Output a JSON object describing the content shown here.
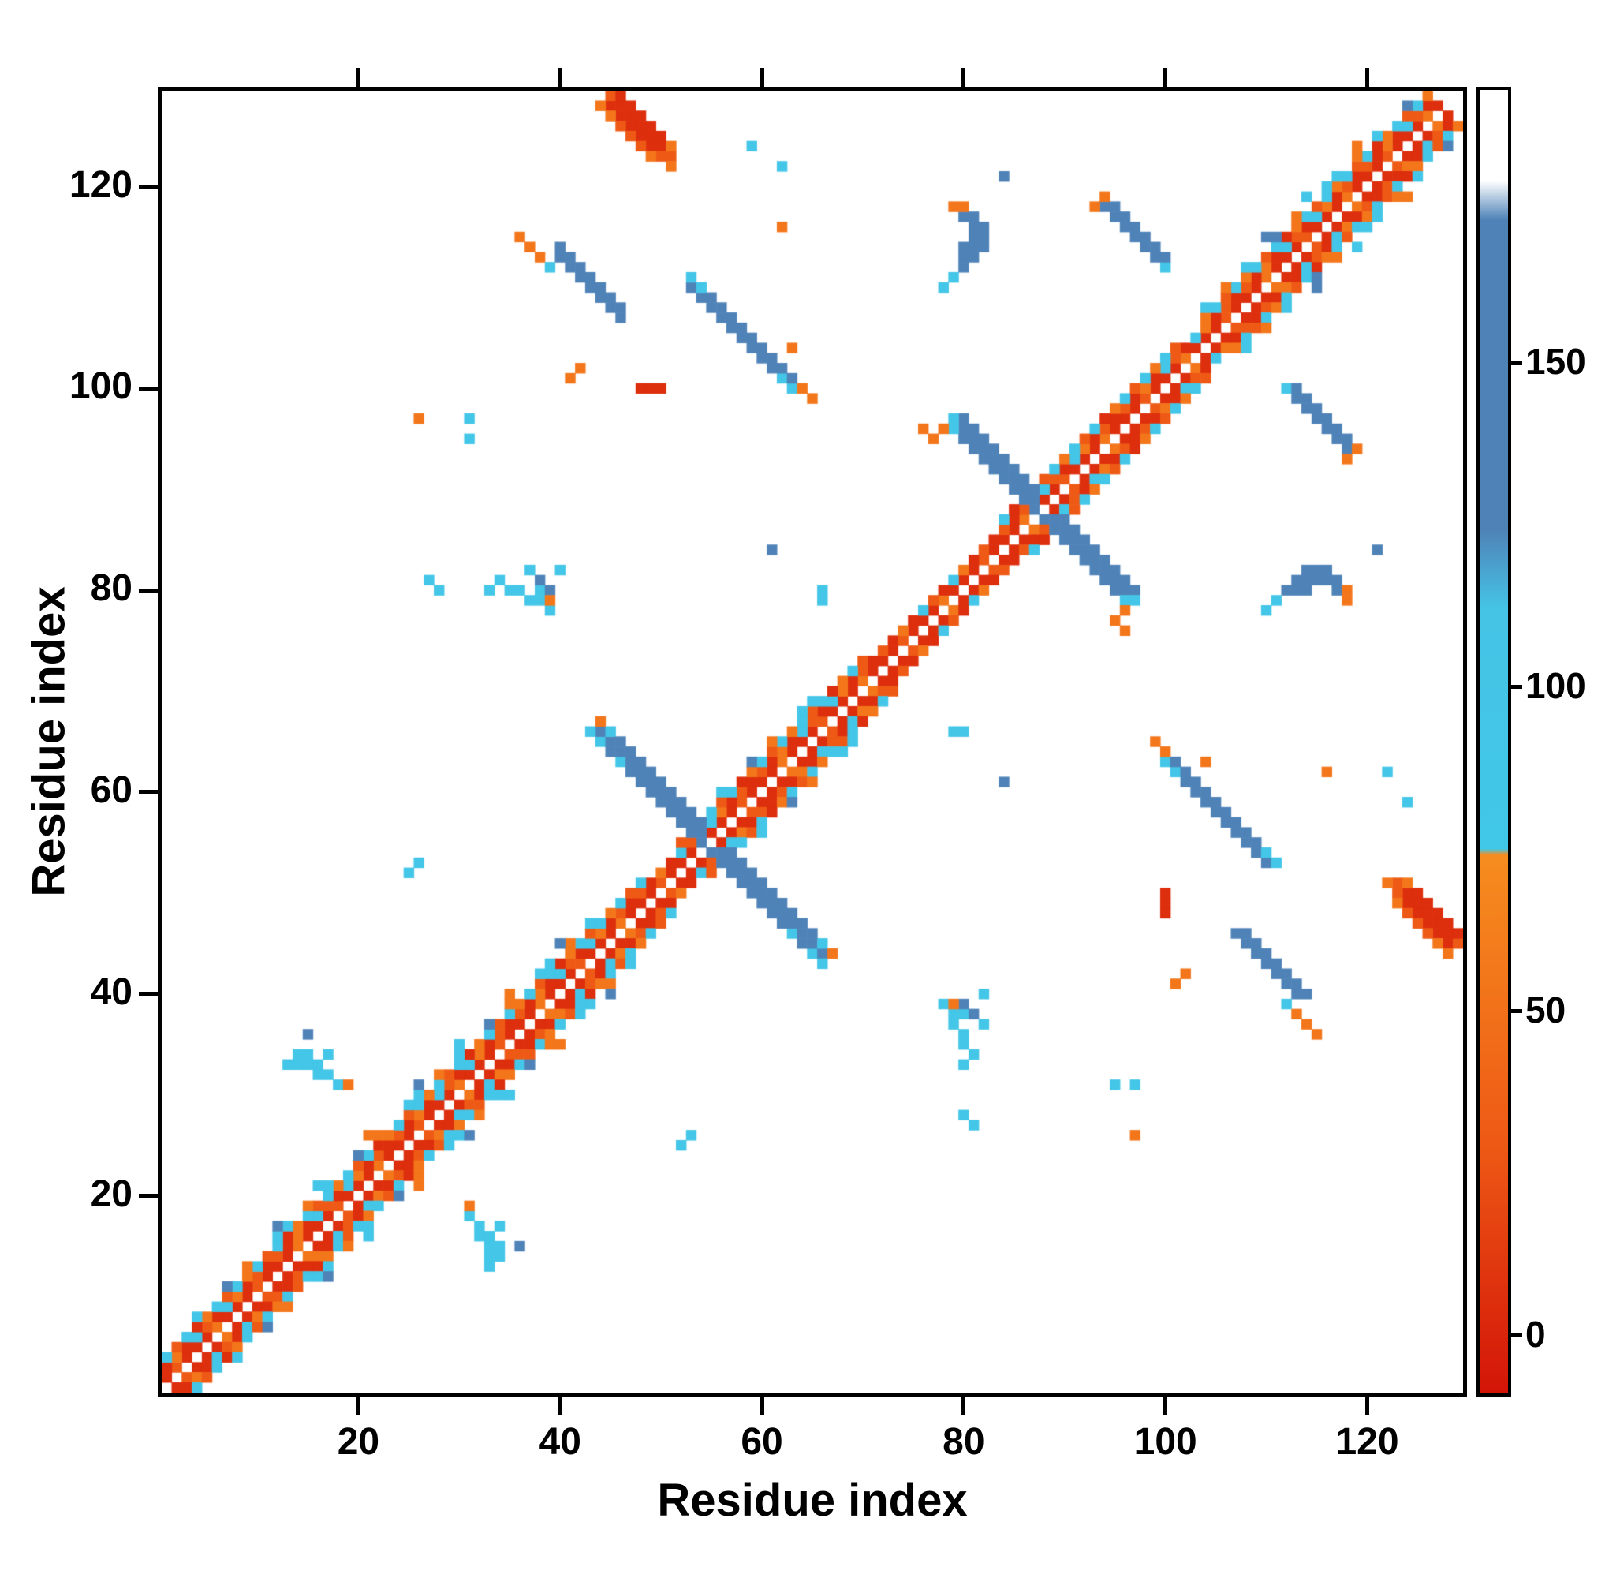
{
  "chart_data": {
    "type": "heatmap",
    "title": "",
    "xlabel": "Residue index",
    "ylabel": "Residue index",
    "n_residues": 129,
    "axis_range": [
      0.5,
      129.5
    ],
    "x_ticks": [
      20,
      40,
      60,
      80,
      100,
      120
    ],
    "y_ticks": [
      20,
      40,
      60,
      80,
      100,
      120
    ],
    "grid": false,
    "background": "#ffffff",
    "axis_color": "#000000",
    "symmetric": true,
    "colorbar": {
      "range": [
        -9,
        192
      ],
      "ticks": [
        0,
        50,
        100,
        150
      ],
      "stops": [
        {
          "v": -9,
          "color": "#d31508"
        },
        {
          "v": 30,
          "color": "#ee5a15"
        },
        {
          "v": 74,
          "color": "#f68c1f"
        },
        {
          "v": 75,
          "color": "#41c7e8"
        },
        {
          "v": 112,
          "color": "#45c4e6"
        },
        {
          "v": 124,
          "color": "#4f83b8"
        },
        {
          "v": 172,
          "color": "#4f83b8"
        },
        {
          "v": 178,
          "color": "#ffffff"
        },
        {
          "v": 192,
          "color": "#ffffff"
        }
      ]
    },
    "features": [
      {
        "name": "near-diagonal-band",
        "type": "band",
        "offsets": [
          {
            "d": 1,
            "ranges": [
              [
                1,
                127
              ]
            ],
            "pattern": [
              5,
              5,
              30,
              5,
              5,
              5,
              55,
              5
            ]
          },
          {
            "d": 2,
            "ranges": [
              [
                1,
                126
              ]
            ],
            "pattern": [
              30,
              5,
              55,
              5,
              90,
              30,
              5,
              90,
              55,
              5,
              30,
              5
            ]
          },
          {
            "d": 3,
            "ranges": [
              [
                1,
                48
              ],
              [
                52,
                70
              ],
              [
                84,
                101
              ],
              [
                104,
                126
              ]
            ],
            "pattern": [
              55,
              90,
              30,
              90,
              5,
              55,
              90,
              30,
              90
            ]
          },
          {
            "d": 4,
            "ranges": [
              [
                4,
                44
              ],
              [
                56,
                66
              ],
              [
                104,
                125
              ]
            ],
            "pattern": [
              90,
              0,
              55,
              0,
              90,
              0,
              0,
              140,
              0,
              55,
              0,
              0,
              90
            ]
          },
          {
            "d": 5,
            "ranges": [
              [
                12,
                40
              ],
              [
                108,
                122
              ]
            ],
            "pattern": [
              0,
              0,
              90,
              0,
              0,
              0,
              0,
              55,
              0,
              0,
              0,
              0,
              140,
              0
            ]
          }
        ]
      },
      {
        "name": "hairpin-55",
        "type": "antidiag",
        "sum": 110,
        "i0": 44,
        "i1": 54,
        "offsets": [
          -1,
          0,
          1
        ],
        "v": 145
      },
      {
        "name": "hairpin-55-tips",
        "type": "cells",
        "cells": [
          [
            44,
            65,
            90
          ],
          [
            45,
            66,
            90
          ],
          [
            44,
            66,
            145
          ],
          [
            43,
            66,
            90
          ],
          [
            44,
            67,
            55
          ],
          [
            46,
            63,
            90
          ],
          [
            45,
            64,
            145
          ]
        ]
      },
      {
        "name": "hairpin-88",
        "type": "antidiag",
        "sum": 176,
        "i0": 80,
        "i1": 87,
        "offsets": [
          -1,
          0,
          1
        ],
        "v": 145
      },
      {
        "name": "hairpin-88-tips",
        "type": "cells",
        "cells": [
          [
            79,
            97,
            90
          ],
          [
            80,
            97,
            145
          ],
          [
            79,
            96,
            90
          ],
          [
            81,
            96,
            145
          ],
          [
            86,
            88,
            30
          ]
        ]
      },
      {
        "name": "streak-56-107",
        "type": "antidiag",
        "sum": 163,
        "i0": 53,
        "i1": 63,
        "offsets": [
          0,
          1
        ],
        "v": 145
      },
      {
        "name": "streak-56-107-ends",
        "type": "cells",
        "cells": [
          [
            53,
            111,
            90
          ],
          [
            54,
            110,
            90
          ],
          [
            62,
            101,
            90
          ],
          [
            63,
            100,
            90
          ],
          [
            64,
            100,
            55
          ],
          [
            65,
            99,
            55
          ],
          [
            48,
            100,
            5
          ],
          [
            49,
            100,
            5
          ],
          [
            50,
            100,
            5
          ],
          [
            41,
            101,
            55
          ],
          [
            42,
            102,
            55
          ],
          [
            63,
            104,
            55
          ]
        ]
      },
      {
        "name": "streak-43-111",
        "type": "antidiag",
        "sum": 153,
        "i0": 40,
        "i1": 46,
        "offsets": [
          0,
          1
        ],
        "v": 145
      },
      {
        "name": "streak-43-111-ends",
        "type": "cells",
        "cells": [
          [
            37,
            114,
            55
          ],
          [
            38,
            113,
            55
          ],
          [
            36,
            115,
            55
          ],
          [
            39,
            112,
            90
          ]
        ]
      },
      {
        "name": "streak-97-115",
        "type": "antidiag",
        "sum": 212,
        "i0": 94,
        "i1": 100,
        "offsets": [
          0,
          1
        ],
        "v": 145
      },
      {
        "name": "streak-97-115-ends",
        "type": "cells",
        "cells": [
          [
            93,
            118,
            55
          ],
          [
            100,
            112,
            90
          ],
          [
            94,
            119,
            55
          ]
        ]
      },
      {
        "name": "blob-80-114",
        "type": "cells",
        "cells": [
          [
            80,
            112,
            145
          ],
          [
            80,
            113,
            145
          ],
          [
            81,
            113,
            145
          ],
          [
            80,
            114,
            145
          ],
          [
            81,
            114,
            145
          ],
          [
            82,
            114,
            145
          ],
          [
            81,
            115,
            145
          ],
          [
            82,
            115,
            145
          ],
          [
            81,
            116,
            145
          ],
          [
            82,
            116,
            145
          ],
          [
            80,
            117,
            145
          ],
          [
            81,
            117,
            145
          ],
          [
            79,
            118,
            55
          ],
          [
            80,
            118,
            55
          ],
          [
            78,
            110,
            90
          ],
          [
            79,
            111,
            90
          ]
        ]
      },
      {
        "name": "red-blob-48-126",
        "type": "cells",
        "cells": [
          [
            45,
            128,
            5
          ],
          [
            46,
            128,
            5
          ],
          [
            46,
            127,
            5
          ],
          [
            47,
            127,
            5
          ],
          [
            47,
            126,
            5
          ],
          [
            48,
            126,
            5
          ],
          [
            48,
            125,
            5
          ],
          [
            49,
            125,
            5
          ],
          [
            49,
            124,
            5
          ],
          [
            50,
            124,
            5
          ],
          [
            50,
            123,
            30
          ],
          [
            51,
            123,
            30
          ],
          [
            45,
            129,
            30
          ],
          [
            46,
            129,
            5
          ],
          [
            47,
            128,
            5
          ],
          [
            48,
            127,
            5
          ],
          [
            49,
            126,
            5
          ],
          [
            50,
            125,
            5
          ],
          [
            51,
            124,
            55
          ],
          [
            44,
            128,
            55
          ],
          [
            45,
            127,
            55
          ],
          [
            46,
            126,
            30
          ],
          [
            47,
            125,
            30
          ],
          [
            48,
            124,
            30
          ],
          [
            49,
            123,
            55
          ],
          [
            51,
            122,
            55
          ]
        ]
      },
      {
        "name": "cluster-16-33",
        "type": "cells",
        "cells": [
          [
            14,
            33,
            90
          ],
          [
            15,
            33,
            90
          ],
          [
            15,
            34,
            90
          ],
          [
            16,
            33,
            90
          ],
          [
            16,
            32,
            90
          ],
          [
            17,
            32,
            90
          ],
          [
            18,
            31,
            90
          ],
          [
            14,
            34,
            90
          ],
          [
            17,
            34,
            90
          ],
          [
            15,
            36,
            140
          ],
          [
            19,
            31,
            55
          ],
          [
            13,
            33,
            90
          ]
        ]
      },
      {
        "name": "cluster-38-80",
        "type": "cells",
        "cells": [
          [
            37,
            79,
            90
          ],
          [
            38,
            79,
            90
          ],
          [
            38,
            80,
            90
          ],
          [
            39,
            78,
            90
          ],
          [
            36,
            80,
            90
          ],
          [
            38,
            81,
            140
          ],
          [
            40,
            82,
            90
          ],
          [
            39,
            80,
            140
          ],
          [
            37,
            82,
            90
          ]
        ]
      },
      {
        "name": "scatter-dots",
        "type": "cells",
        "cells": [
          [
            59,
            124,
            90
          ],
          [
            62,
            122,
            90
          ],
          [
            84,
            121,
            145
          ],
          [
            62,
            116,
            55
          ],
          [
            61,
            84,
            145
          ],
          [
            66,
            80,
            90
          ],
          [
            66,
            79,
            90
          ],
          [
            27,
            81,
            90
          ],
          [
            28,
            80,
            90
          ],
          [
            33,
            80,
            90
          ],
          [
            34,
            81,
            90
          ],
          [
            35,
            80,
            90
          ],
          [
            39,
            79,
            55
          ],
          [
            31,
            97,
            90
          ],
          [
            26,
            97,
            55
          ],
          [
            25,
            52,
            90
          ],
          [
            26,
            53,
            90
          ],
          [
            76,
            96,
            55
          ],
          [
            77,
            95,
            55
          ],
          [
            78,
            96,
            55
          ],
          [
            80,
            36,
            90
          ],
          [
            31,
            95,
            90
          ]
        ]
      }
    ]
  }
}
